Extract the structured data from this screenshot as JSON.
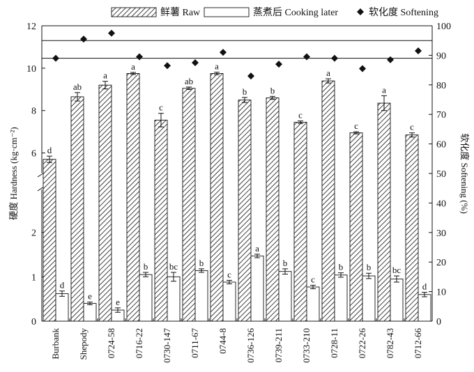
{
  "chart_data": {
    "type": "bar",
    "categories": [
      "Burbank",
      "Shepody",
      "0724-58",
      "0716-22",
      "0730-147",
      "0711-67",
      "0744-8",
      "0736-126",
      "0739-211",
      "0733-210",
      "0728-11",
      "0722-26",
      "0782-43",
      "0712-66"
    ],
    "legend": [
      "鲜薯 Raw",
      "蒸煮后 Cooking later",
      "软化度 Softening"
    ],
    "legend_position": "top",
    "ylabel_left": "硬度 Hardness (kg·cm⁻²)",
    "ylabel_right": "软化度 Softening (%)",
    "left_axis_upper": {
      "range": [
        5,
        12
      ],
      "ticks": [
        "6",
        "8",
        "10",
        "12"
      ]
    },
    "left_axis_lower": {
      "range": [
        0,
        3
      ],
      "ticks": [
        "0",
        "1",
        "2"
      ]
    },
    "right_axis": {
      "range": [
        0,
        100
      ],
      "ticks": [
        "0",
        "10",
        "20",
        "30",
        "40",
        "50",
        "60",
        "70",
        "80",
        "90",
        "100"
      ]
    },
    "series": [
      {
        "name": "鲜薯 Raw",
        "axis": "left",
        "style": "hatched",
        "values": [
          5.7,
          8.65,
          9.2,
          9.75,
          7.55,
          9.05,
          9.75,
          8.5,
          8.6,
          7.45,
          9.4,
          6.95,
          8.35,
          6.85
        ],
        "errors": [
          0.15,
          0.2,
          0.18,
          0.05,
          0.32,
          0.06,
          0.06,
          0.12,
          0.07,
          0.06,
          0.1,
          0.05,
          0.35,
          0.1
        ],
        "labels": [
          "d",
          "ab",
          "a",
          "a",
          "c",
          "ab",
          "a",
          "b",
          "b",
          "c",
          "a",
          "c",
          "a",
          "c"
        ]
      },
      {
        "name": "蒸煮后 Cooking later",
        "axis": "left",
        "style": "open",
        "values": [
          0.62,
          0.4,
          0.25,
          1.05,
          1.0,
          1.14,
          0.88,
          1.47,
          1.12,
          0.77,
          1.04,
          1.02,
          0.95,
          0.6
        ],
        "errors": [
          0.06,
          0.03,
          0.05,
          0.05,
          0.1,
          0.04,
          0.04,
          0.04,
          0.06,
          0.04,
          0.05,
          0.06,
          0.07,
          0.05
        ],
        "labels": [
          "d",
          "e",
          "e",
          "b",
          "bc",
          "b",
          "c",
          "a",
          "b",
          "c",
          "b",
          "b",
          "bc",
          "d"
        ]
      },
      {
        "name": "软化度 Softening",
        "axis": "right",
        "style": "diamond",
        "values": [
          89,
          95.5,
          97.5,
          89.5,
          86.5,
          87.5,
          91,
          83,
          87,
          89.5,
          89,
          85.5,
          88.5,
          91.5
        ]
      }
    ],
    "reference_lines_right": [
      95,
      89
    ]
  },
  "colors": {
    "ink": "#111111",
    "raw_fill": "hatched",
    "cook_fill": "#ffffff"
  }
}
